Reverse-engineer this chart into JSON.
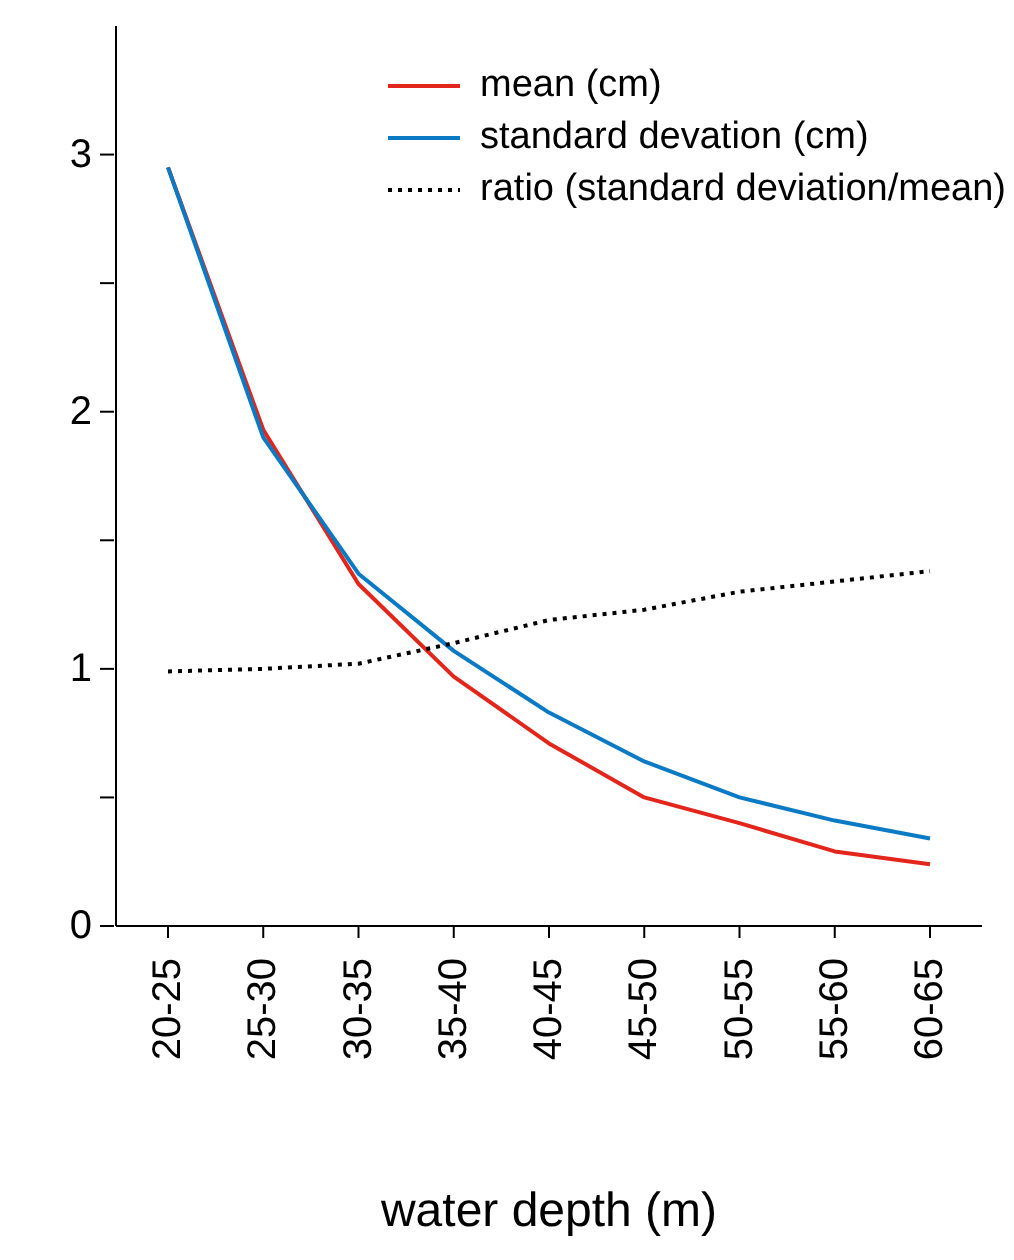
{
  "chart_data": {
    "type": "line",
    "xlabel": "water depth (m)",
    "categories": [
      "20-25",
      "25-30",
      "30-35",
      "35-40",
      "40-45",
      "45-50",
      "50-55",
      "55-60",
      "60-65"
    ],
    "series": [
      {
        "name": "mean (cm)",
        "color": "#e3261c",
        "line_style": "solid",
        "values": [
          2.95,
          1.93,
          1.33,
          0.97,
          0.71,
          0.5,
          0.4,
          0.29,
          0.24
        ]
      },
      {
        "name": "standard devation (cm)",
        "color": "#0a7ac4",
        "line_style": "solid",
        "values": [
          2.95,
          1.9,
          1.37,
          1.07,
          0.83,
          0.64,
          0.5,
          0.41,
          0.34
        ]
      },
      {
        "name": "ratio (standard deviation/mean)",
        "color": "#000000",
        "line_style": "dotted",
        "values": [
          0.99,
          1.0,
          1.02,
          1.1,
          1.19,
          1.23,
          1.3,
          1.34,
          1.38
        ]
      }
    ],
    "ylim": [
      0,
      3.5
    ],
    "yticks": [
      0,
      {
        "value": 0.5,
        "label": null
      },
      1,
      {
        "value": 1.5,
        "label": null
      },
      2,
      {
        "value": 2.5,
        "label": null
      },
      3
    ],
    "grid": false,
    "legend": "top right",
    "marker": "none"
  }
}
